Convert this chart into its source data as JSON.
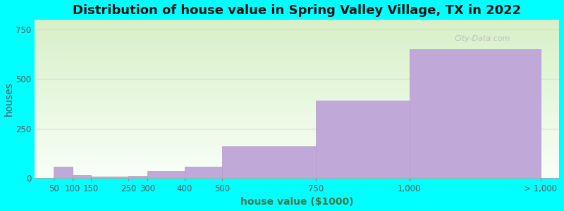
{
  "title": "Distribution of house value in Spring Valley Village, TX in 2022",
  "xlabel": "house value ($1000)",
  "ylabel": "houses",
  "background_color": "#00FFFF",
  "plot_bg_top": "#d8f0c8",
  "plot_bg_bottom": "#f8fff8",
  "bar_color": "#c0a8d8",
  "bar_edge_color": "#b898c8",
  "bin_edges": [
    0,
    50,
    100,
    150,
    250,
    300,
    400,
    500,
    750,
    1000,
    1350
  ],
  "values": [
    0,
    55,
    15,
    5,
    10,
    35,
    55,
    160,
    390,
    650
  ],
  "tick_positions": [
    50,
    100,
    150,
    250,
    300,
    400,
    500,
    750,
    1000,
    1350
  ],
  "tick_labels": [
    "50",
    "100",
    "150",
    "250",
    "300",
    "400",
    "500",
    "750",
    "1,000",
    "> 1,000"
  ],
  "xlim": [
    0,
    1400
  ],
  "ylim": [
    0,
    800
  ],
  "yticks": [
    0,
    250,
    500,
    750
  ],
  "grid_color": "#d0d0d0",
  "title_fontsize": 13,
  "axis_label_fontsize": 10,
  "tick_fontsize": 8.5,
  "watermark": "City-Data.com"
}
